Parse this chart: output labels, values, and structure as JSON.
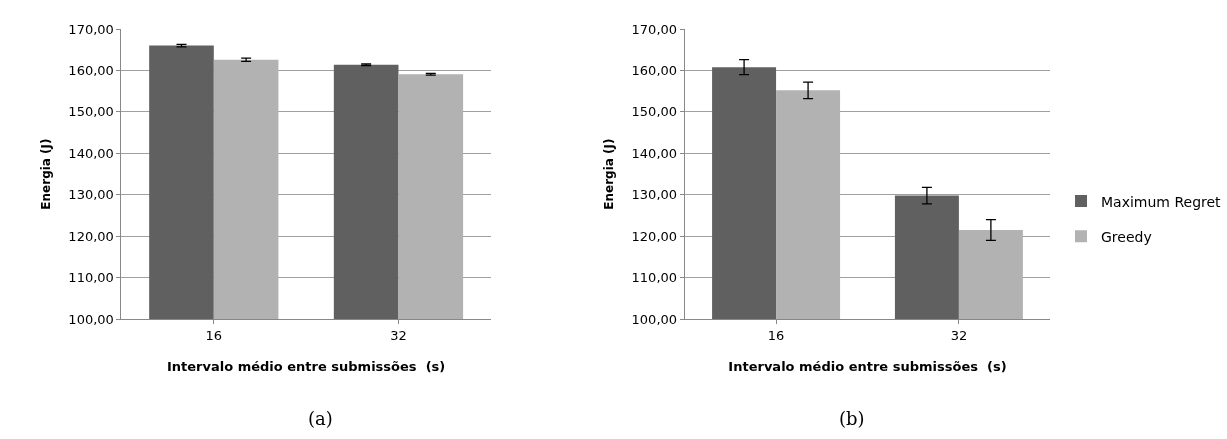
{
  "chart_data": [
    {
      "type": "bar",
      "xlabel": "Intervalo médio entre submissões  (s)",
      "ylabel": "Energia (J)",
      "categories": [
        "16",
        "32"
      ],
      "series": [
        {
          "color": "#606060",
          "values": [
            166.0,
            161.4
          ],
          "errors": [
            0.3,
            0.2
          ]
        },
        {
          "color": "#b2b2b2",
          "values": [
            162.6,
            159.1
          ],
          "errors": [
            0.4,
            0.2
          ]
        }
      ],
      "ylim": [
        100,
        170
      ],
      "yticks": [
        {
          "value": 100,
          "label": "100,00"
        },
        {
          "value": 110,
          "label": "110,00"
        },
        {
          "value": 120,
          "label": "120,00"
        },
        {
          "value": 130,
          "label": "130,00"
        },
        {
          "value": 140,
          "label": "140,00"
        },
        {
          "value": 150,
          "label": "150,00"
        },
        {
          "value": 160,
          "label": "160,00"
        },
        {
          "value": 170,
          "label": "170,00"
        }
      ],
      "grid": "y",
      "annotations": [
        "(a)"
      ]
    },
    {
      "type": "bar",
      "xlabel": "Intervalo médio entre submissões  (s)",
      "ylabel": "Energia (J)",
      "categories": [
        "16",
        "32"
      ],
      "series": [
        {
          "name": "Maximum Regret",
          "color": "#606060",
          "values": [
            160.8,
            129.8
          ],
          "errors": [
            1.8,
            2.0
          ]
        },
        {
          "name": "Greedy",
          "color": "#b2b2b2",
          "values": [
            155.2,
            121.5
          ],
          "errors": [
            2.0,
            2.5
          ]
        }
      ],
      "ylim": [
        100,
        170
      ],
      "yticks": [
        {
          "value": 100,
          "label": "100,00"
        },
        {
          "value": 110,
          "label": "110,00"
        },
        {
          "value": 120,
          "label": "120,00"
        },
        {
          "value": 130,
          "label": "130,00"
        },
        {
          "value": 140,
          "label": "140,00"
        },
        {
          "value": 150,
          "label": "150,00"
        },
        {
          "value": 160,
          "label": "160,00"
        },
        {
          "value": 170,
          "label": "170,00"
        }
      ],
      "grid": "y",
      "legend": "right",
      "annotations": [
        "(b)"
      ]
    }
  ]
}
